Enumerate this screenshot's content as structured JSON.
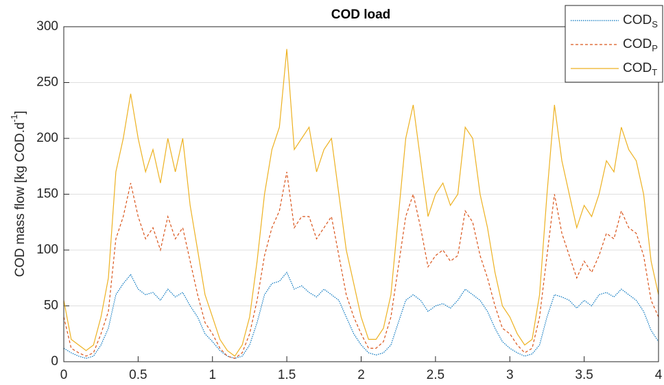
{
  "chart_data": {
    "type": "line",
    "title": "COD load",
    "ylabel": "COD mass flow [kg COD.d",
    "ylabel_sup": "-1",
    "ylabel_end": "]",
    "x": [
      0,
      0.05,
      0.1,
      0.15,
      0.2,
      0.25,
      0.3,
      0.35,
      0.4,
      0.45,
      0.5,
      0.55,
      0.6,
      0.65,
      0.7,
      0.75,
      0.8,
      0.85,
      0.9,
      0.95,
      1,
      1.05,
      1.1,
      1.15,
      1.2,
      1.25,
      1.3,
      1.35,
      1.4,
      1.45,
      1.5,
      1.55,
      1.6,
      1.65,
      1.7,
      1.75,
      1.8,
      1.85,
      1.9,
      1.95,
      2,
      2.05,
      2.1,
      2.15,
      2.2,
      2.25,
      2.3,
      2.35,
      2.4,
      2.45,
      2.5,
      2.55,
      2.6,
      2.65,
      2.7,
      2.75,
      2.8,
      2.85,
      2.9,
      2.95,
      3,
      3.05,
      3.1,
      3.15,
      3.2,
      3.25,
      3.3,
      3.35,
      3.4,
      3.45,
      3.5,
      3.55,
      3.6,
      3.65,
      3.7,
      3.75,
      3.8,
      3.85,
      3.9,
      3.95,
      4
    ],
    "series": [
      {
        "name": "COD",
        "subscript": "S",
        "color": "#0072bd",
        "dash": "1.5,1.5",
        "values": [
          12,
          8,
          5,
          3,
          5,
          15,
          30,
          60,
          70,
          78,
          65,
          60,
          62,
          55,
          65,
          58,
          62,
          50,
          40,
          25,
          18,
          10,
          5,
          3,
          5,
          15,
          35,
          60,
          70,
          72,
          80,
          65,
          68,
          62,
          58,
          65,
          60,
          55,
          40,
          25,
          15,
          8,
          6,
          8,
          15,
          35,
          55,
          60,
          55,
          45,
          50,
          52,
          48,
          55,
          65,
          60,
          55,
          45,
          30,
          18,
          12,
          8,
          5,
          7,
          15,
          40,
          60,
          58,
          55,
          48,
          55,
          50,
          60,
          62,
          58,
          65,
          60,
          55,
          45,
          28,
          18
        ]
      },
      {
        "name": "COD",
        "subscript": "P",
        "color": "#d95319",
        "dash": "4,3",
        "values": [
          40,
          12,
          8,
          5,
          8,
          25,
          45,
          110,
          130,
          160,
          130,
          110,
          120,
          100,
          130,
          110,
          120,
          90,
          60,
          35,
          25,
          12,
          5,
          3,
          8,
          25,
          55,
          95,
          120,
          135,
          170,
          120,
          130,
          130,
          110,
          120,
          130,
          95,
          60,
          40,
          25,
          12,
          12,
          18,
          40,
          85,
          130,
          150,
          120,
          85,
          95,
          100,
          90,
          95,
          135,
          125,
          95,
          75,
          50,
          30,
          25,
          15,
          8,
          12,
          40,
          95,
          150,
          115,
          95,
          75,
          90,
          80,
          95,
          115,
          110,
          135,
          120,
          115,
          95,
          55,
          40
        ]
      },
      {
        "name": "COD",
        "subscript": "T",
        "color": "#edb120",
        "dash": "",
        "values": [
          55,
          20,
          15,
          10,
          15,
          40,
          75,
          170,
          200,
          240,
          200,
          170,
          190,
          160,
          200,
          170,
          200,
          140,
          100,
          60,
          40,
          20,
          10,
          5,
          15,
          40,
          90,
          150,
          190,
          210,
          280,
          190,
          200,
          210,
          170,
          190,
          200,
          150,
          100,
          70,
          40,
          20,
          20,
          30,
          60,
          130,
          200,
          230,
          180,
          130,
          150,
          160,
          140,
          150,
          210,
          200,
          150,
          120,
          80,
          50,
          40,
          25,
          15,
          20,
          60,
          150,
          230,
          180,
          150,
          120,
          140,
          130,
          150,
          180,
          170,
          210,
          190,
          180,
          150,
          90,
          60
        ]
      }
    ],
    "xlim": [
      0,
      4
    ],
    "xticks": [
      0,
      0.5,
      1,
      1.5,
      2,
      2.5,
      3,
      3.5,
      4
    ],
    "ylim": [
      0,
      300
    ],
    "yticks": [
      0,
      50,
      100,
      150,
      200,
      250,
      300
    ],
    "grid": true,
    "legend": "top-right"
  }
}
